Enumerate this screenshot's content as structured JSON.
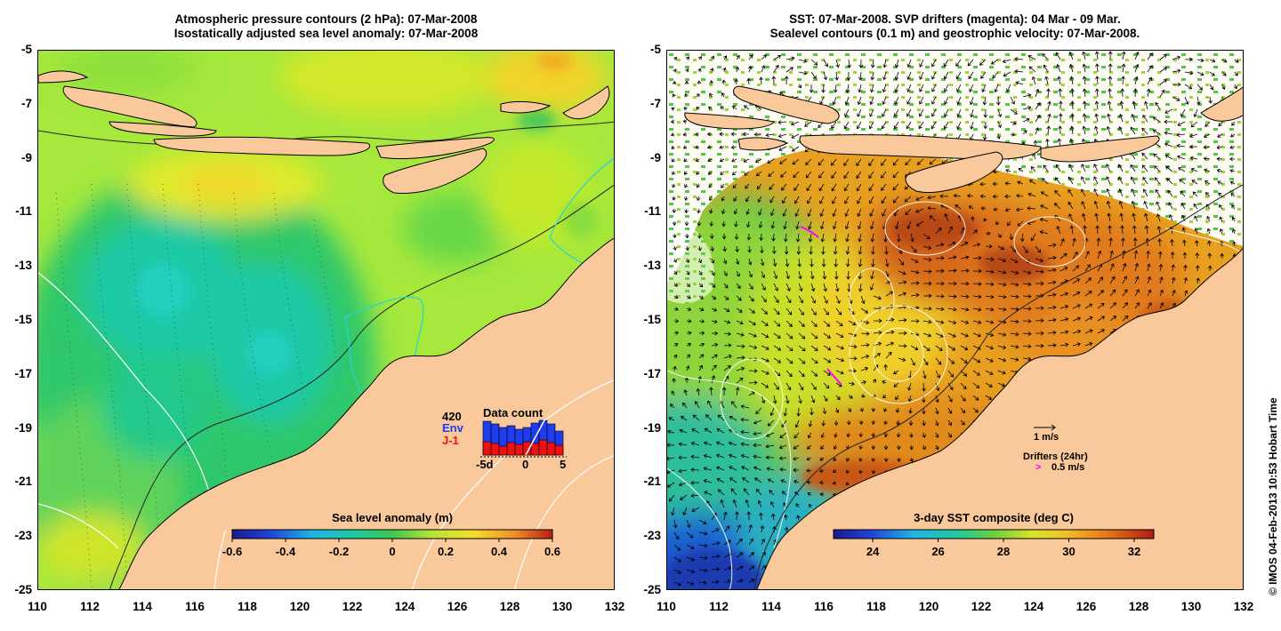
{
  "left_panel": {
    "title_line1": "Atmospheric pressure contours (2 hPa): 07-Mar-2008",
    "title_line2": "Isostatically adjusted sea level anomaly: 07-Mar-2008",
    "colorbar_title": "Sea level anomaly (m)",
    "colorbar_ticks": [
      "-0.6",
      "-0.4",
      "-0.2",
      "0",
      "0.2",
      "0.4",
      "0.6"
    ],
    "colorbar_range": [
      -0.6,
      0.6
    ],
    "inset": {
      "count": "420",
      "env_label": "Env",
      "j1_label": "J-1",
      "title": "Data count",
      "axis_labels": [
        "-5d",
        "0",
        "5"
      ],
      "env_color": "#1e3cf0",
      "j1_color": "#ee1111"
    }
  },
  "right_panel": {
    "title_line1": "SST: 07-Mar-2008. SVP drifters (magenta): 04 Mar - 09 Mar.",
    "title_line2": "Sealevel contours (0.1 m) and geostrophic velocity: 07-Mar-2008.",
    "colorbar_title": "3-day SST composite (deg C)",
    "colorbar_ticks": [
      "24",
      "26",
      "28",
      "30",
      "32"
    ],
    "colorbar_range": [
      22.8,
      32.6
    ],
    "velocity_scale_label": "1 m/s",
    "drifters_label": "Drifters (24hr)",
    "drifter_scale_label": "0.5 m/s",
    "drifter_symbol": ">"
  },
  "axes": {
    "lat_ticks": [
      "-5",
      "-7",
      "-9",
      "-11",
      "-13",
      "-15",
      "-17",
      "-19",
      "-21",
      "-23",
      "-25"
    ],
    "lon_ticks": [
      "110",
      "112",
      "114",
      "116",
      "118",
      "120",
      "122",
      "124",
      "126",
      "128",
      "130",
      "132"
    ],
    "lat_range": [
      -5,
      -25
    ],
    "lon_range": [
      110,
      132
    ]
  },
  "colors": {
    "land": "#f9c99c",
    "contour_cyan": "#21d6d6",
    "drifter_magenta": "#ff00ff"
  },
  "credit": "© IMOS 04-Feb-2013 10:53 Hobart Time"
}
